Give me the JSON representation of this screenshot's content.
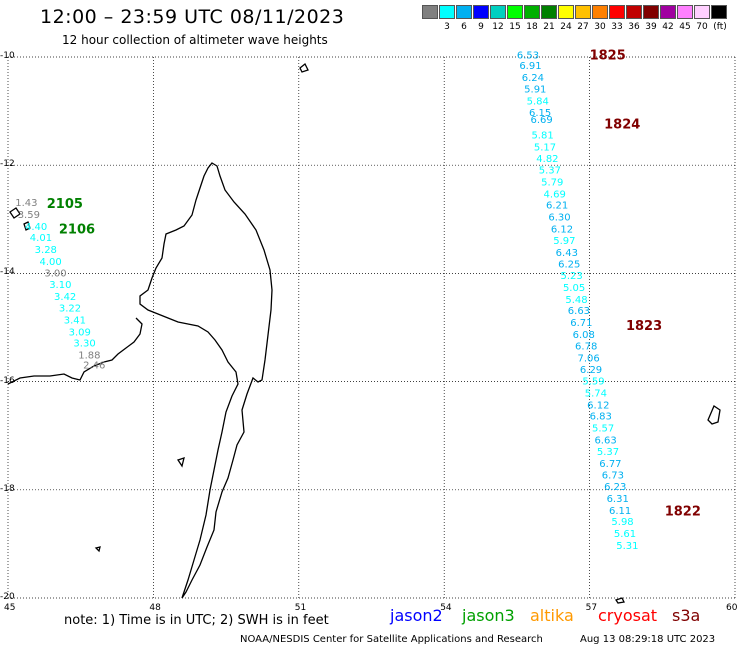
{
  "header": {
    "title": "12:00 – 23:59 UTC 08/11/2023",
    "subtitle": "12 hour collection of altimeter wave heights"
  },
  "scale": {
    "units": "(ft)",
    "swatches": [
      {
        "color": "#808080",
        "label": ""
      },
      {
        "color": "#00ffff",
        "label": "3"
      },
      {
        "color": "#00b0f0",
        "label": "6"
      },
      {
        "color": "#0000ff",
        "label": "9"
      },
      {
        "color": "#00d0c0",
        "label": "12"
      },
      {
        "color": "#00ff00",
        "label": "15"
      },
      {
        "color": "#00b000",
        "label": "18"
      },
      {
        "color": "#008000",
        "label": "21"
      },
      {
        "color": "#ffff00",
        "label": "24"
      },
      {
        "color": "#ffc000",
        "label": "27"
      },
      {
        "color": "#ff8000",
        "label": "30"
      },
      {
        "color": "#ff0000",
        "label": "33"
      },
      {
        "color": "#c00000",
        "label": "36"
      },
      {
        "color": "#800000",
        "label": "39"
      },
      {
        "color": "#a000a0",
        "label": "42"
      },
      {
        "color": "#ff80ff",
        "label": "45"
      },
      {
        "color": "#ffd0ff",
        "label": "70"
      },
      {
        "color": "#000000",
        "label": ""
      }
    ]
  },
  "map": {
    "lon_ticks": [
      "45",
      "48",
      "51",
      "54",
      "57",
      "60"
    ],
    "lat_ticks": [
      "-10",
      "-12",
      "-14",
      "-16",
      "-18",
      "-20"
    ],
    "pass_labels": [
      {
        "text": "1825",
        "lon": 57.0,
        "lat": -9.95,
        "color": "#800000"
      },
      {
        "text": "1824",
        "lon": 57.3,
        "lat": -11.23,
        "color": "#800000"
      },
      {
        "text": "1823",
        "lon": 57.75,
        "lat": -14.95,
        "color": "#800000"
      },
      {
        "text": "1822",
        "lon": 58.55,
        "lat": -18.38,
        "color": "#800000"
      },
      {
        "text": "2105",
        "lon": 45.8,
        "lat": -12.7,
        "color": "#008000"
      },
      {
        "text": "2106",
        "lon": 46.05,
        "lat": -13.17,
        "color": "#008000"
      }
    ],
    "measurements": [
      {
        "v": "6.53",
        "lon": 55.5,
        "lat": -9.95,
        "c": "#00b0f0"
      },
      {
        "v": "6.91",
        "lon": 55.55,
        "lat": -10.15,
        "c": "#00b0f0"
      },
      {
        "v": "6.24",
        "lon": 55.6,
        "lat": -10.37,
        "c": "#00b0f0"
      },
      {
        "v": "5.91",
        "lon": 55.65,
        "lat": -10.58,
        "c": "#00b0f0"
      },
      {
        "v": "5.84",
        "lon": 55.7,
        "lat": -10.8,
        "c": "#00ffff"
      },
      {
        "v": "6.15",
        "lon": 55.75,
        "lat": -11.02,
        "c": "#00b0f0"
      },
      {
        "v": "6.69",
        "lon": 55.78,
        "lat": -11.15,
        "c": "#00b0f0"
      },
      {
        "v": "5.81",
        "lon": 55.8,
        "lat": -11.43,
        "c": "#00ffff"
      },
      {
        "v": "5.17",
        "lon": 55.85,
        "lat": -11.65,
        "c": "#00ffff"
      },
      {
        "v": "4.82",
        "lon": 55.9,
        "lat": -11.87,
        "c": "#00ffff"
      },
      {
        "v": "5.37",
        "lon": 55.95,
        "lat": -12.08,
        "c": "#00ffff"
      },
      {
        "v": "5.79",
        "lon": 56.0,
        "lat": -12.3,
        "c": "#00ffff"
      },
      {
        "v": "4.69",
        "lon": 56.05,
        "lat": -12.52,
        "c": "#00ffff"
      },
      {
        "v": "6.21",
        "lon": 56.1,
        "lat": -12.73,
        "c": "#00b0f0"
      },
      {
        "v": "6.30",
        "lon": 56.15,
        "lat": -12.95,
        "c": "#00b0f0"
      },
      {
        "v": "6.12",
        "lon": 56.2,
        "lat": -13.17,
        "c": "#00b0f0"
      },
      {
        "v": "5.97",
        "lon": 56.25,
        "lat": -13.38,
        "c": "#00ffff"
      },
      {
        "v": "6.43",
        "lon": 56.3,
        "lat": -13.6,
        "c": "#00b0f0"
      },
      {
        "v": "6.25",
        "lon": 56.35,
        "lat": -13.82,
        "c": "#00b0f0"
      },
      {
        "v": "5.23",
        "lon": 56.4,
        "lat": -14.03,
        "c": "#00ffff"
      },
      {
        "v": "5.05",
        "lon": 56.45,
        "lat": -14.25,
        "c": "#00ffff"
      },
      {
        "v": "5.48",
        "lon": 56.5,
        "lat": -14.47,
        "c": "#00ffff"
      },
      {
        "v": "6.63",
        "lon": 56.55,
        "lat": -14.68,
        "c": "#00b0f0"
      },
      {
        "v": "6.71",
        "lon": 56.6,
        "lat": -14.9,
        "c": "#00b0f0"
      },
      {
        "v": "6.08",
        "lon": 56.65,
        "lat": -15.12,
        "c": "#00b0f0"
      },
      {
        "v": "6.78",
        "lon": 56.7,
        "lat": -15.33,
        "c": "#00b0f0"
      },
      {
        "v": "7.06",
        "lon": 56.75,
        "lat": -15.55,
        "c": "#00b0f0"
      },
      {
        "v": "6.29",
        "lon": 56.8,
        "lat": -15.77,
        "c": "#00b0f0"
      },
      {
        "v": "5.59",
        "lon": 56.85,
        "lat": -15.98,
        "c": "#00ffff"
      },
      {
        "v": "5.74",
        "lon": 56.9,
        "lat": -16.2,
        "c": "#00ffff"
      },
      {
        "v": "6.12",
        "lon": 56.95,
        "lat": -16.42,
        "c": "#00b0f0"
      },
      {
        "v": "6.83",
        "lon": 57.0,
        "lat": -16.63,
        "c": "#00b0f0"
      },
      {
        "v": "5.57",
        "lon": 57.05,
        "lat": -16.85,
        "c": "#00ffff"
      },
      {
        "v": "6.63",
        "lon": 57.1,
        "lat": -17.07,
        "c": "#00b0f0"
      },
      {
        "v": "5.37",
        "lon": 57.15,
        "lat": -17.28,
        "c": "#00ffff"
      },
      {
        "v": "6.77",
        "lon": 57.2,
        "lat": -17.5,
        "c": "#00b0f0"
      },
      {
        "v": "6.73",
        "lon": 57.25,
        "lat": -17.72,
        "c": "#00b0f0"
      },
      {
        "v": "6.23",
        "lon": 57.3,
        "lat": -17.93,
        "c": "#00b0f0"
      },
      {
        "v": "6.31",
        "lon": 57.35,
        "lat": -18.15,
        "c": "#00b0f0"
      },
      {
        "v": "6.11",
        "lon": 57.4,
        "lat": -18.37,
        "c": "#00b0f0"
      },
      {
        "v": "5.98",
        "lon": 57.45,
        "lat": -18.58,
        "c": "#00ffff"
      },
      {
        "v": "5.61",
        "lon": 57.5,
        "lat": -18.8,
        "c": "#00ffff"
      },
      {
        "v": "5.31",
        "lon": 57.55,
        "lat": -19.02,
        "c": "#00ffff"
      },
      {
        "v": "1.43",
        "lon": 45.15,
        "lat": -12.68,
        "c": "#808080"
      },
      {
        "v": "3.59",
        "lon": 45.2,
        "lat": -12.9,
        "c": "#808080"
      },
      {
        "v": "4.40",
        "lon": 45.35,
        "lat": -13.12,
        "c": "#00ffff"
      },
      {
        "v": "4.01",
        "lon": 45.45,
        "lat": -13.33,
        "c": "#00ffff"
      },
      {
        "v": "3.28",
        "lon": 45.55,
        "lat": -13.55,
        "c": "#00ffff"
      },
      {
        "v": "4.00",
        "lon": 45.65,
        "lat": -13.77,
        "c": "#00ffff"
      },
      {
        "v": "3.00",
        "lon": 45.75,
        "lat": -13.98,
        "c": "#808080"
      },
      {
        "v": "3.10",
        "lon": 45.85,
        "lat": -14.2,
        "c": "#00ffff"
      },
      {
        "v": "3.42",
        "lon": 45.95,
        "lat": -14.42,
        "c": "#00ffff"
      },
      {
        "v": "3.22",
        "lon": 46.05,
        "lat": -14.63,
        "c": "#00ffff"
      },
      {
        "v": "3.41",
        "lon": 46.15,
        "lat": -14.85,
        "c": "#00ffff"
      },
      {
        "v": "3.09",
        "lon": 46.25,
        "lat": -15.07,
        "c": "#00ffff"
      },
      {
        "v": "3.30",
        "lon": 46.35,
        "lat": -15.28,
        "c": "#00ffff"
      },
      {
        "v": "1.88",
        "lon": 46.45,
        "lat": -15.5,
        "c": "#808080"
      },
      {
        "v": "2.46",
        "lon": 46.55,
        "lat": -15.68,
        "c": "#808080"
      }
    ]
  },
  "footer": {
    "note": "note: 1) Time is in UTC; 2) SWH is in feet",
    "satellites": [
      {
        "name": "jason2",
        "color": "#0000ff"
      },
      {
        "name": "jason3",
        "color": "#00a000"
      },
      {
        "name": "altika",
        "color": "#ff9900"
      },
      {
        "name": "cryosat",
        "color": "#ff0000"
      },
      {
        "name": "s3a",
        "color": "#800000"
      }
    ],
    "credit": "NOAA/NESDIS Center for Satellite Applications and Research",
    "timestamp": "Aug 13 08:29:18 UTC 2023"
  }
}
